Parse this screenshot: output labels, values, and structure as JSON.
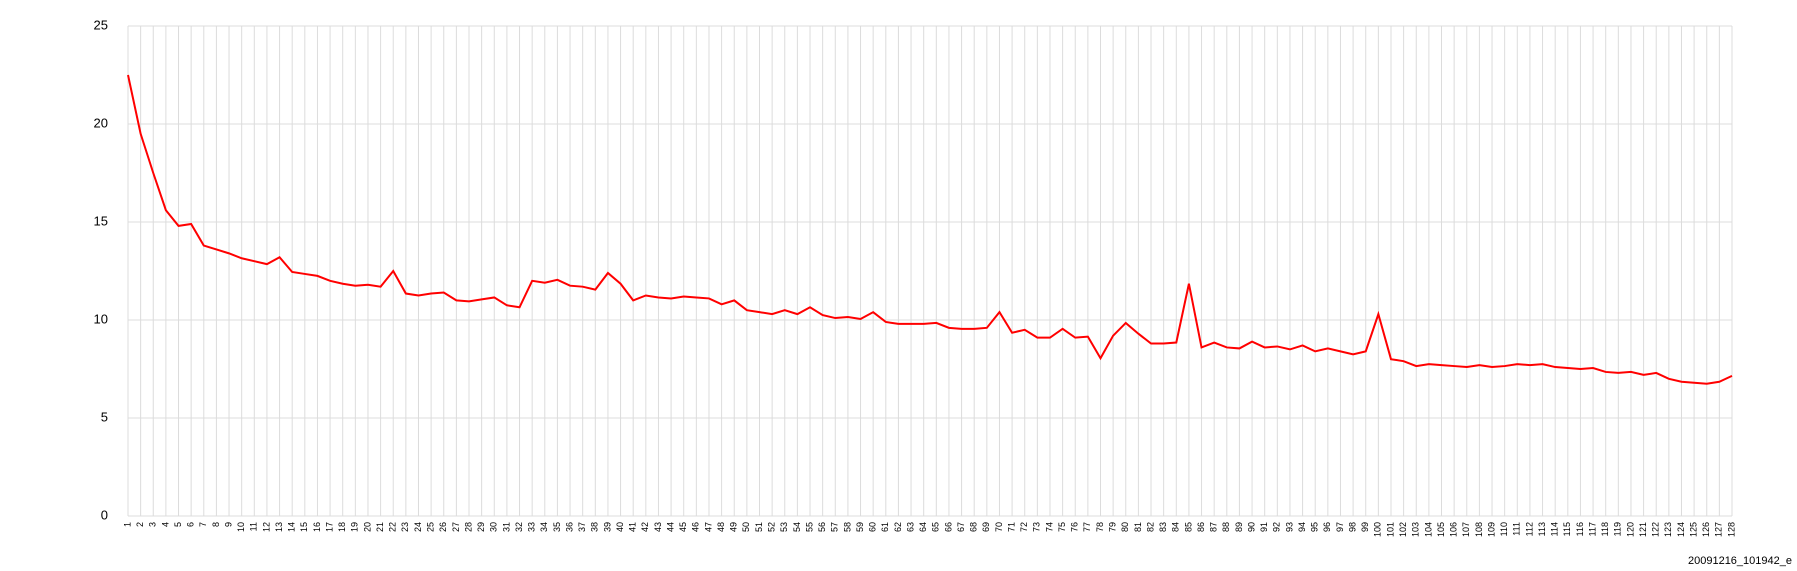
{
  "chart_data": {
    "type": "line",
    "categories": [
      "1",
      "2",
      "3",
      "4",
      "5",
      "6",
      "7",
      "8",
      "9",
      "10",
      "11",
      "12",
      "13",
      "14",
      "15",
      "16",
      "17",
      "18",
      "19",
      "20",
      "21",
      "22",
      "23",
      "24",
      "25",
      "26",
      "27",
      "28",
      "29",
      "30",
      "31",
      "32",
      "33",
      "34",
      "35",
      "36",
      "37",
      "38",
      "39",
      "40",
      "41",
      "42",
      "43",
      "44",
      "45",
      "46",
      "47",
      "48",
      "49",
      "50",
      "51",
      "52",
      "53",
      "54",
      "55",
      "56",
      "57",
      "58",
      "59",
      "60",
      "61",
      "62",
      "63",
      "64",
      "65",
      "66",
      "67",
      "68",
      "69",
      "70",
      "71",
      "72",
      "73",
      "74",
      "75",
      "76",
      "77",
      "78",
      "79",
      "80",
      "81",
      "82",
      "83",
      "84",
      "85",
      "86",
      "87",
      "88",
      "89",
      "90",
      "91",
      "92",
      "93",
      "94",
      "95",
      "96",
      "97",
      "98",
      "99",
      "100",
      "101",
      "102",
      "103",
      "104",
      "105",
      "106",
      "107",
      "108",
      "109",
      "110",
      "111",
      "112",
      "113",
      "114",
      "115",
      "116",
      "117",
      "118",
      "119",
      "120",
      "121",
      "122",
      "123",
      "124",
      "125",
      "126",
      "127",
      "128"
    ],
    "series": [
      {
        "color": "#ff0000",
        "values": [
          22.5,
          19.5,
          17.5,
          15.6,
          14.8,
          14.9,
          13.8,
          13.6,
          13.4,
          13.15,
          13.0,
          12.85,
          13.2,
          12.45,
          12.35,
          12.25,
          12.0,
          11.85,
          11.75,
          11.8,
          11.7,
          12.5,
          11.35,
          11.25,
          11.35,
          11.4,
          11.0,
          10.95,
          11.05,
          11.15,
          10.75,
          10.65,
          12.0,
          11.9,
          12.05,
          11.75,
          11.7,
          11.55,
          12.4,
          11.85,
          11.0,
          11.25,
          11.15,
          11.1,
          11.2,
          11.15,
          11.1,
          10.8,
          11.0,
          10.5,
          10.4,
          10.3,
          10.5,
          10.3,
          10.65,
          10.25,
          10.1,
          10.15,
          10.05,
          10.4,
          9.9,
          9.8,
          9.8,
          9.8,
          9.85,
          9.6,
          9.55,
          9.55,
          9.6,
          10.4,
          9.35,
          9.5,
          9.1,
          9.1,
          9.55,
          9.1,
          9.15,
          8.05,
          9.2,
          9.85,
          9.3,
          8.8,
          8.8,
          8.85,
          11.85,
          8.6,
          8.85,
          8.6,
          8.55,
          8.9,
          8.6,
          8.65,
          8.5,
          8.7,
          8.4,
          8.55,
          8.4,
          8.25,
          8.4,
          10.3,
          8.0,
          7.9,
          7.65,
          7.75,
          7.7,
          7.65,
          7.6,
          7.7,
          7.6,
          7.65,
          7.75,
          7.7,
          7.75,
          7.6,
          7.55,
          7.5,
          7.55,
          7.35,
          7.3,
          7.35,
          7.2,
          7.3,
          7.0,
          6.85,
          6.8,
          6.75,
          6.85,
          7.15
        ]
      }
    ],
    "ylim": [
      0,
      25
    ],
    "yticks": [
      0,
      5,
      10,
      15,
      20,
      25
    ],
    "grid": true,
    "caption": "20091216_101942_e"
  }
}
